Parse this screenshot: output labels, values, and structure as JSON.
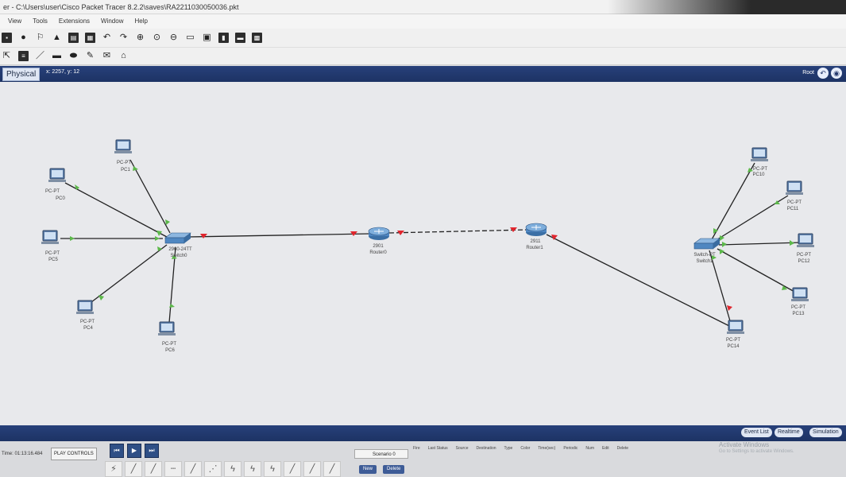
{
  "window": {
    "title": "er - C:\\Users\\user\\Cisco Packet Tracer 8.2.2\\saves\\RA2211030050036.pkt"
  },
  "menu": [
    "View",
    "Tools",
    "Extensions",
    "Window",
    "Help"
  ],
  "modebar": {
    "physical_label": "Physical",
    "coords": "x: 2257, y: 12",
    "root_label": "Root"
  },
  "devices": {
    "pc0": {
      "model": "PC-PT",
      "name": "PC0"
    },
    "pc1": {
      "model": "PC-PT",
      "name": "PC1"
    },
    "pc5": {
      "model": "PC-PT",
      "name": "PC5"
    },
    "pc4": {
      "model": "PC-PT",
      "name": "PC4"
    },
    "pc6": {
      "model": "PC-PT",
      "name": "PC6"
    },
    "switch0": {
      "model": "2960-24TT",
      "name": "Switch0"
    },
    "router0": {
      "model": "2901",
      "name": "Router0"
    },
    "router1": {
      "model": "2911",
      "name": "Router1"
    },
    "switch1": {
      "model": "Switch-PT",
      "name": "Switch1"
    },
    "pc10": {
      "model": "PC-PT",
      "name": "PC10"
    },
    "pc11": {
      "model": "PC-PT",
      "name": "PC11"
    },
    "pc12": {
      "model": "PC-PT",
      "name": "PC12"
    },
    "pc13": {
      "model": "PC-PT",
      "name": "PC13"
    },
    "pc14": {
      "model": "PC-PT",
      "name": "PC14"
    }
  },
  "bottom_modes": {
    "event_list": "Event List",
    "realtime": "Realtime",
    "simulation": "Simulation"
  },
  "sim": {
    "time": "Time: 01:13:16.484",
    "play_controls": "PLAY CONTROLS",
    "scenario": "Scenario 0",
    "new": "New",
    "delete": "Delete",
    "pdu_headers": [
      "Fire",
      "Last Status",
      "Source",
      "Destination",
      "Type",
      "Color",
      "Time(sec)",
      "Periodic",
      "Num",
      "Edit",
      "Delete"
    ]
  },
  "watermark": {
    "line1": "Activate Windows",
    "line2": "Go to Settings to activate Windows."
  },
  "colors": {
    "accent": "#27407a",
    "link_up": "#5cb84a",
    "link_down": "#e0262e"
  }
}
